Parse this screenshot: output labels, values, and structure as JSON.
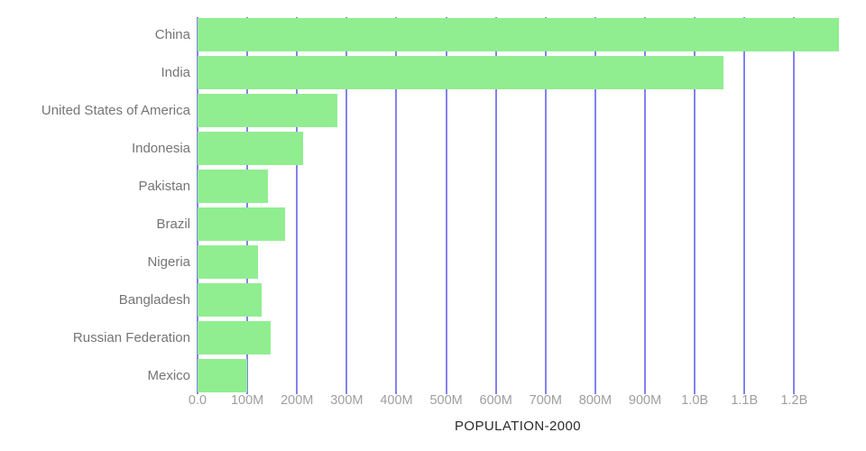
{
  "chart_data": {
    "type": "bar",
    "orientation": "horizontal",
    "title": "",
    "xlabel": "POPULATION-2000",
    "ylabel": "",
    "categories": [
      "China",
      "India",
      "United States of America",
      "Indonesia",
      "Pakistan",
      "Brazil",
      "Nigeria",
      "Bangladesh",
      "Russian Federation",
      "Mexico"
    ],
    "values": [
      1290000000,
      1057000000,
      282000000,
      212000000,
      142000000,
      176000000,
      122000000,
      128000000,
      147000000,
      100000000
    ],
    "xlim": [
      0,
      1290000000
    ],
    "x_ticks": [
      {
        "label": "0.0",
        "value": 0
      },
      {
        "label": "100M",
        "value": 100000000
      },
      {
        "label": "200M",
        "value": 200000000
      },
      {
        "label": "300M",
        "value": 300000000
      },
      {
        "label": "400M",
        "value": 400000000
      },
      {
        "label": "500M",
        "value": 500000000
      },
      {
        "label": "600M",
        "value": 600000000
      },
      {
        "label": "700M",
        "value": 700000000
      },
      {
        "label": "800M",
        "value": 800000000
      },
      {
        "label": "900M",
        "value": 900000000
      },
      {
        "label": "1.0B",
        "value": 1000000000
      },
      {
        "label": "1.1B",
        "value": 1100000000
      },
      {
        "label": "1.2B",
        "value": 1200000000
      }
    ],
    "grid": true,
    "legend": false
  },
  "colors": {
    "bar": "#90EE90",
    "grid": "#8282EF",
    "category_label": "#757575",
    "tick_label": "#9E9E9E",
    "axis_title": "#2B2B2B",
    "background": "#FFFFFF"
  }
}
